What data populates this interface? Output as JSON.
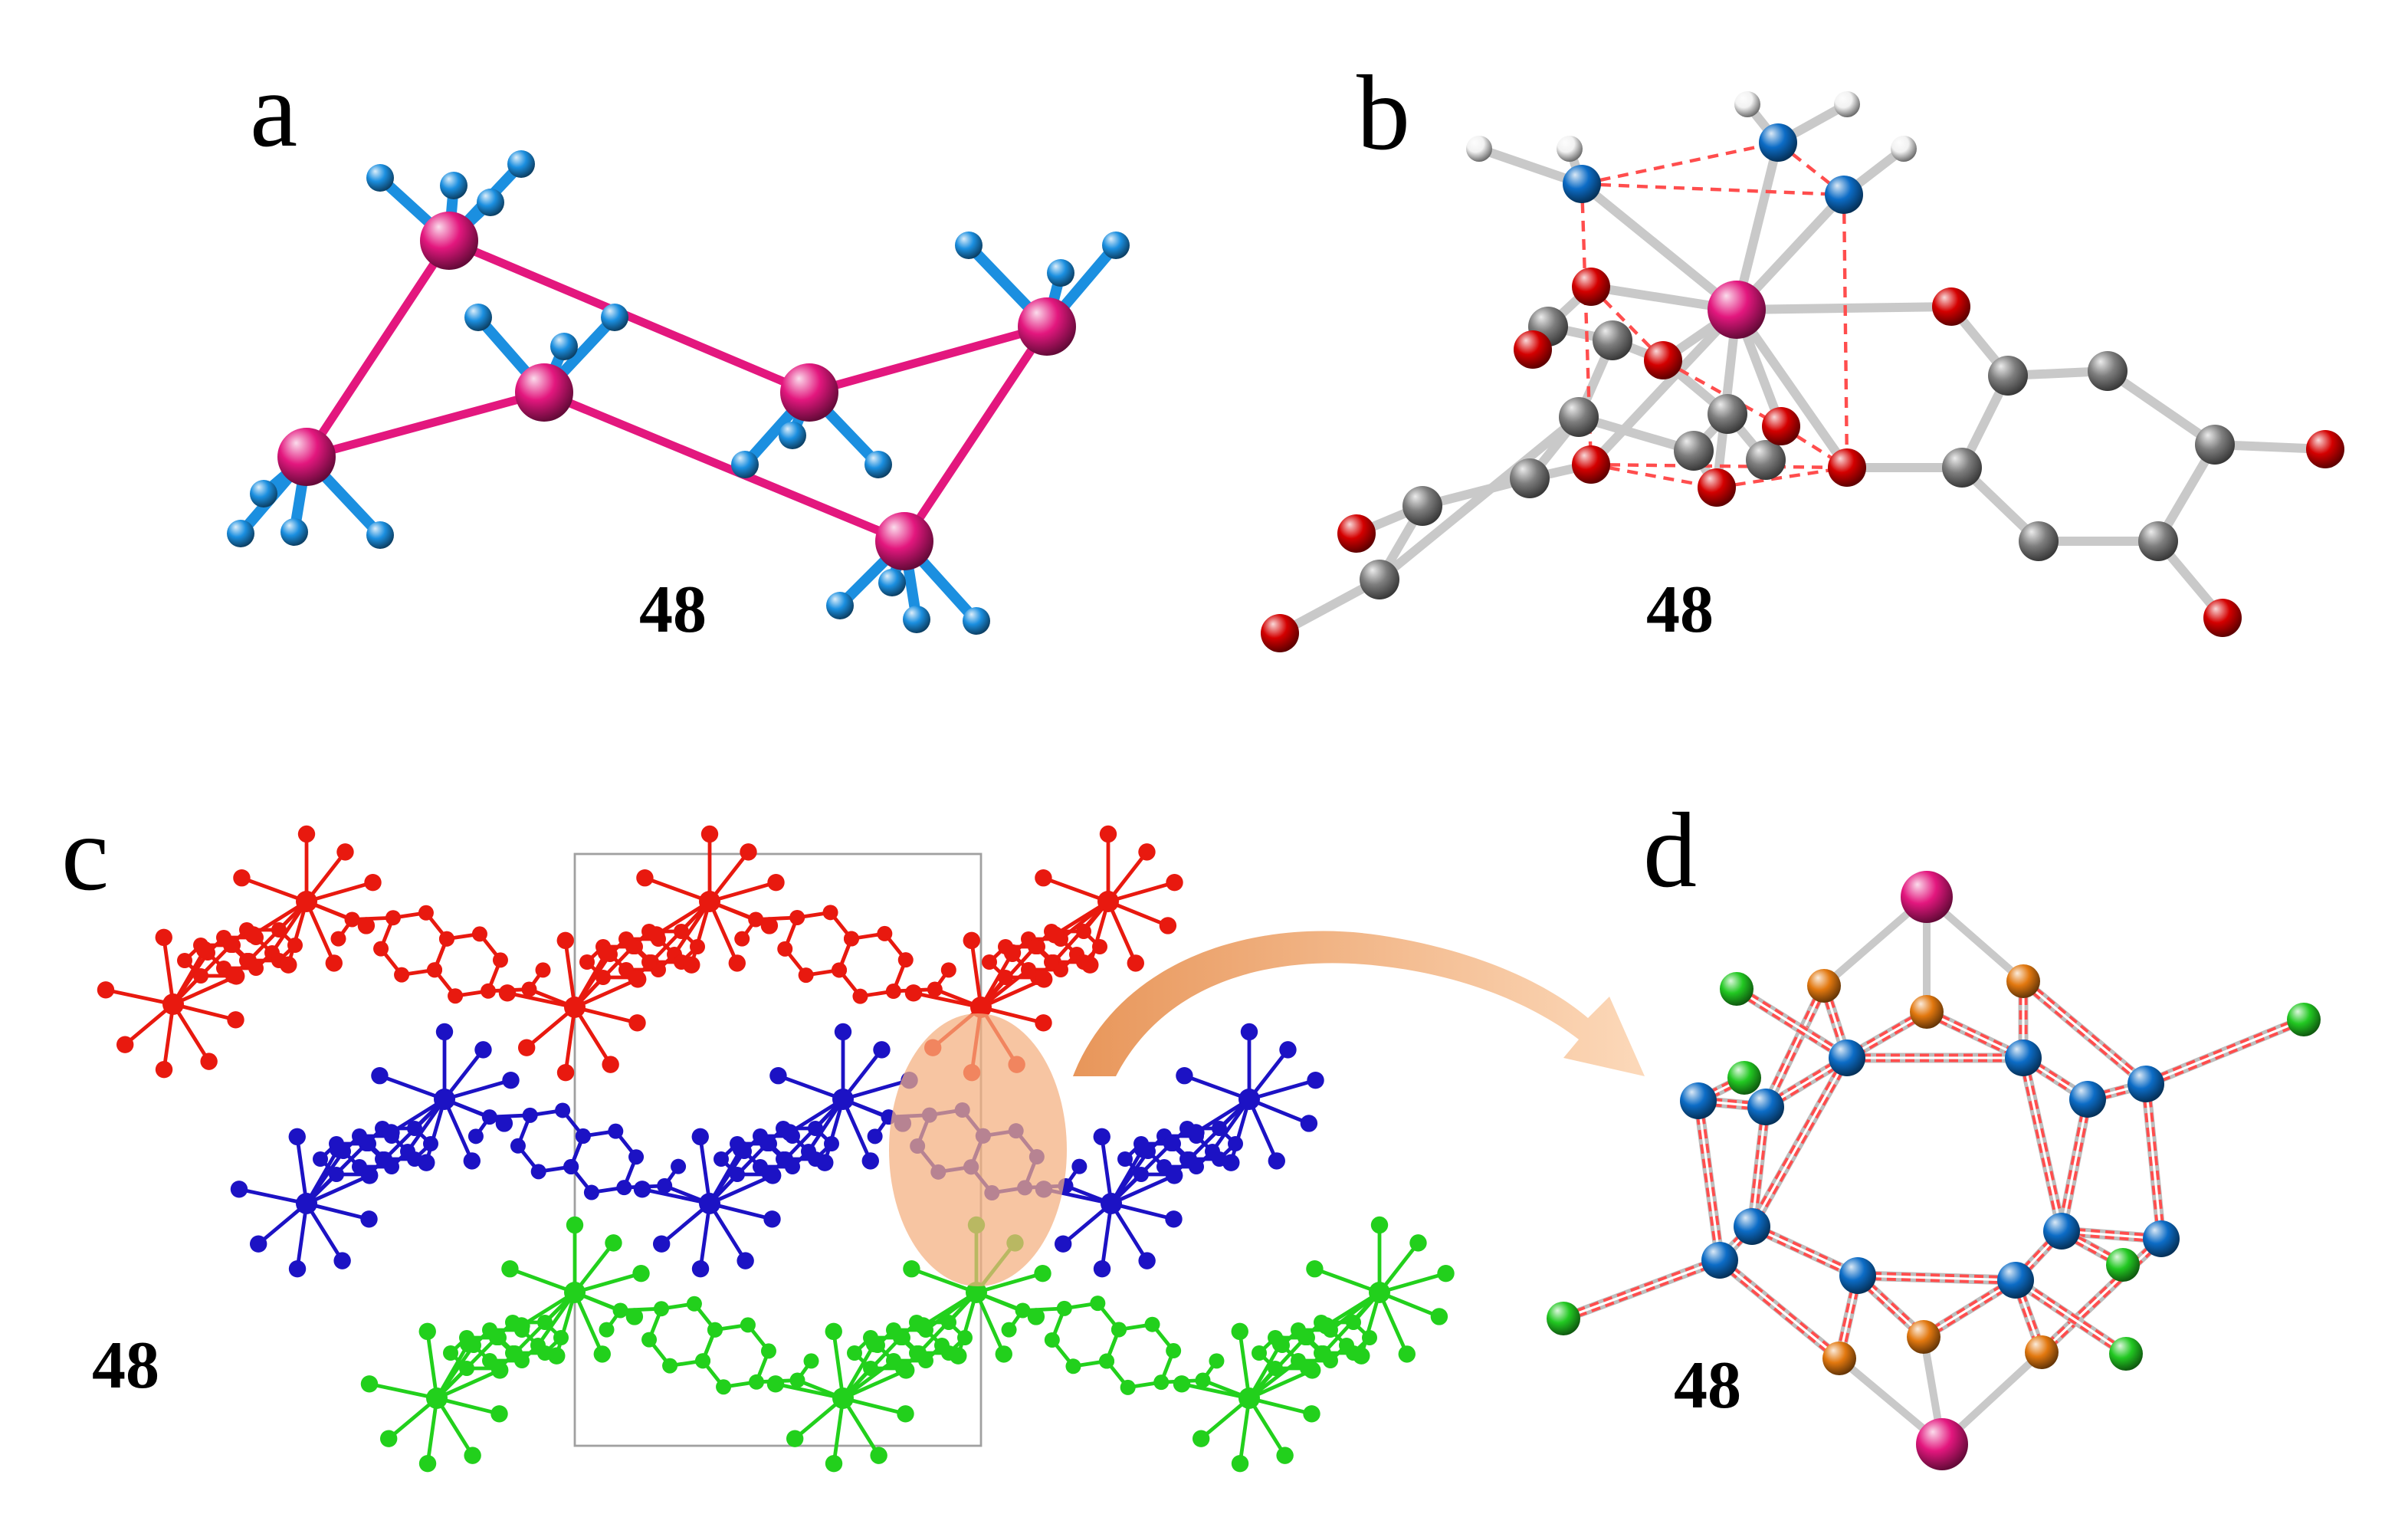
{
  "figure": {
    "panels": [
      {
        "label": "a",
        "compound": "48"
      },
      {
        "label": "b",
        "compound": "48"
      },
      {
        "label": "c",
        "compound": "48"
      },
      {
        "label": "d",
        "compound": "48"
      }
    ]
  },
  "colors": {
    "magenta": "#e3177e",
    "azure": "#1b8fe0",
    "blue": "#0c6cc6",
    "red": "#d40000",
    "grey": "#7e7e7e",
    "white": "#f2f2f2",
    "green": "#22c822",
    "orange": "#e2780f",
    "bond_grey": "#c9c9c9",
    "contact_red": "#ff4d4d",
    "chain_red": "#e8190f",
    "chain_blue": "#1c12c4",
    "chain_green": "#22d01c",
    "highlight": "#f4ae7e",
    "cell_outline": "#a0a0a0",
    "arrow_start": "#e8965a",
    "arrow_end": "#fcd9ba"
  }
}
